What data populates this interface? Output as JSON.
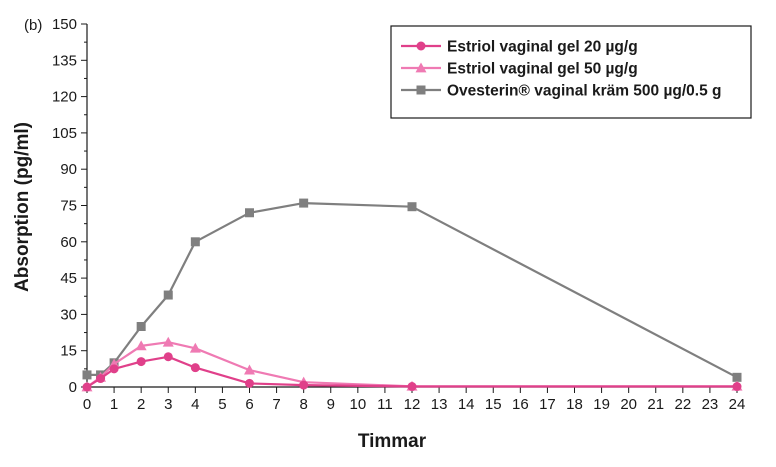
{
  "chart_data": {
    "type": "line",
    "panel_label": "(b)",
    "title": "",
    "xlabel": "Timmar",
    "ylabel": "Absorption (pg/ml)",
    "xlim": [
      0,
      24
    ],
    "ylim": [
      0,
      150
    ],
    "xticks": [
      0,
      1,
      2,
      3,
      4,
      5,
      6,
      7,
      8,
      9,
      10,
      11,
      12,
      13,
      14,
      15,
      16,
      17,
      18,
      19,
      20,
      21,
      22,
      23,
      24
    ],
    "yticks": [
      0,
      15,
      30,
      45,
      60,
      75,
      90,
      105,
      120,
      135,
      150
    ],
    "grid": false,
    "legend_position": "top-right",
    "series": [
      {
        "name": "Estriol vaginal gel 20 µg/g",
        "color": "#e0408a",
        "marker": "circle",
        "x": [
          0,
          0.5,
          1,
          2,
          3,
          4,
          6,
          8,
          12,
          24
        ],
        "y": [
          0,
          3.5,
          7.5,
          10.5,
          12.5,
          8,
          1.5,
          0.8,
          0.2,
          0.2
        ]
      },
      {
        "name": "Estriol vaginal gel 50 µg/g",
        "color": "#ef7ab3",
        "marker": "triangle",
        "x": [
          0,
          0.5,
          1,
          2,
          3,
          4,
          6,
          8,
          12,
          24
        ],
        "y": [
          0,
          4,
          9.5,
          17,
          18.5,
          16,
          7,
          2,
          0.3,
          0.3
        ]
      },
      {
        "name": "Ovesterin® vaginal kräm 500 µg/0.5 g",
        "color": "#7f7f7f",
        "marker": "square",
        "x": [
          0,
          0.5,
          1,
          2,
          3,
          4,
          6,
          8,
          12,
          24
        ],
        "y": [
          5,
          5,
          10,
          25,
          38,
          60,
          72,
          76,
          74.5,
          4
        ]
      }
    ]
  }
}
